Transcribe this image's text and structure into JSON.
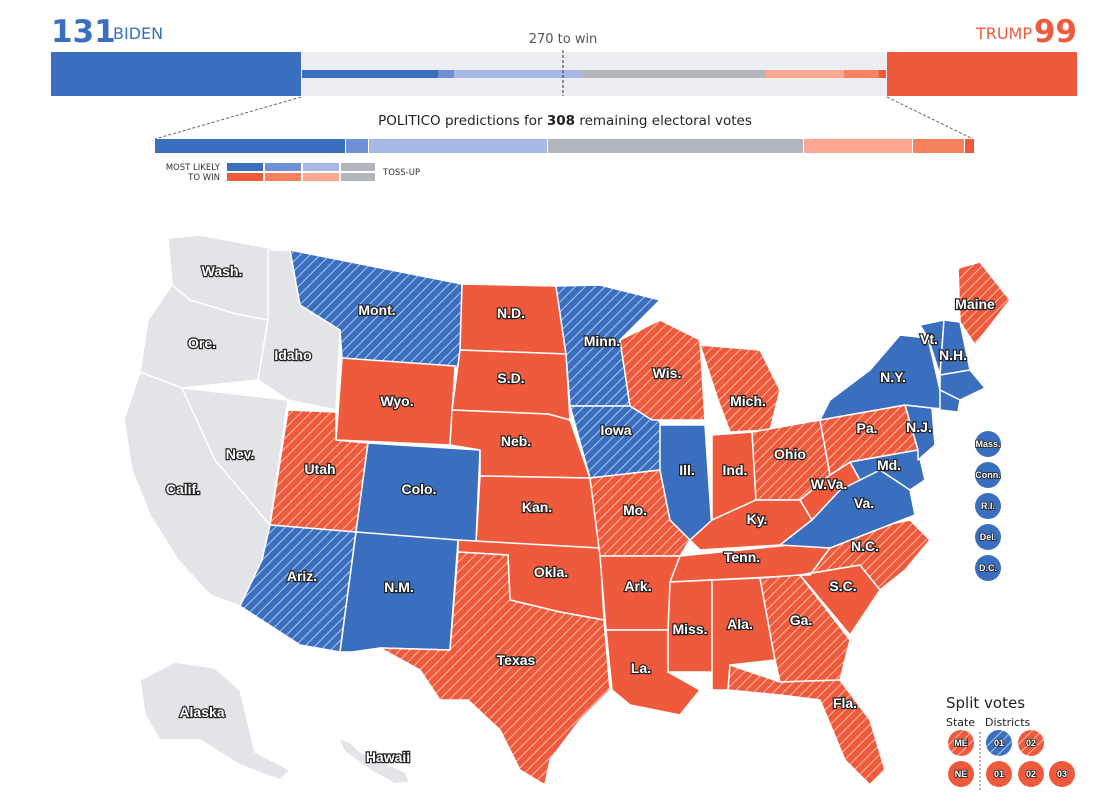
{
  "header": {
    "biden_votes": "131",
    "biden_label": "BIDEN",
    "trump_votes": "99",
    "trump_label": "TRUMP",
    "win_label": "270 to win",
    "predictions_prefix": "POLITICO predictions for ",
    "predictions_count": "308",
    "predictions_suffix": " remaining electoral votes"
  },
  "legend": {
    "most_likely_line1": "MOST LIKELY",
    "most_likely_line2": "TO WIN",
    "toss_up": "TOSS-UP"
  },
  "colors": {
    "solid_dem": "#3a6fc0",
    "likely_dem": "#6f8fd6",
    "lean_dem": "#a8b8e4",
    "toss_up": "#b3b5bd",
    "lean_rep": "#fba791",
    "likely_rep": "#f7805f",
    "solid_rep": "#f05a3c",
    "decided": "#e3e4e8"
  },
  "state_labels": {
    "wash": "Wash.",
    "ore": "Ore.",
    "calif": "Calif.",
    "idaho": "Idaho",
    "nev": "Nev.",
    "mont": "Mont.",
    "wyo": "Wyo.",
    "utah": "Utah",
    "colo": "Colo.",
    "ariz": "Ariz.",
    "nm": "N.M.",
    "nd": "N.D.",
    "sd": "S.D.",
    "neb": "Neb.",
    "kan": "Kan.",
    "okla": "Okla.",
    "texas": "Texas",
    "minn": "Minn.",
    "iowa": "Iowa",
    "mo": "Mo.",
    "ark": "Ark.",
    "la": "La.",
    "wis": "Wis.",
    "ill": "Ill.",
    "mich": "Mich.",
    "ind": "Ind.",
    "ohio": "Ohio",
    "ky": "Ky.",
    "tenn": "Tenn.",
    "miss": "Miss.",
    "ala": "Ala.",
    "ga": "Ga.",
    "fla": "Fla.",
    "sc": "S.C.",
    "nc": "N.C.",
    "va": "Va.",
    "wva": "W.Va.",
    "pa": "Pa.",
    "ny": "N.Y.",
    "md": "Md.",
    "nj": "N.J.",
    "vt": "Vt.",
    "nh": "N.H.",
    "maine": "Maine",
    "alaska": "Alaska",
    "hawaii": "Hawaii"
  },
  "small_states": [
    "Mass.",
    "Conn.",
    "R.I.",
    "Del.",
    "D.C."
  ],
  "split_votes": {
    "title": "Split votes",
    "state_label": "State",
    "districts_label": "Districts",
    "me": "ME",
    "ne": "NE",
    "me_districts": [
      "01",
      "02"
    ],
    "ne_districts": [
      "01",
      "02",
      "03"
    ]
  }
}
